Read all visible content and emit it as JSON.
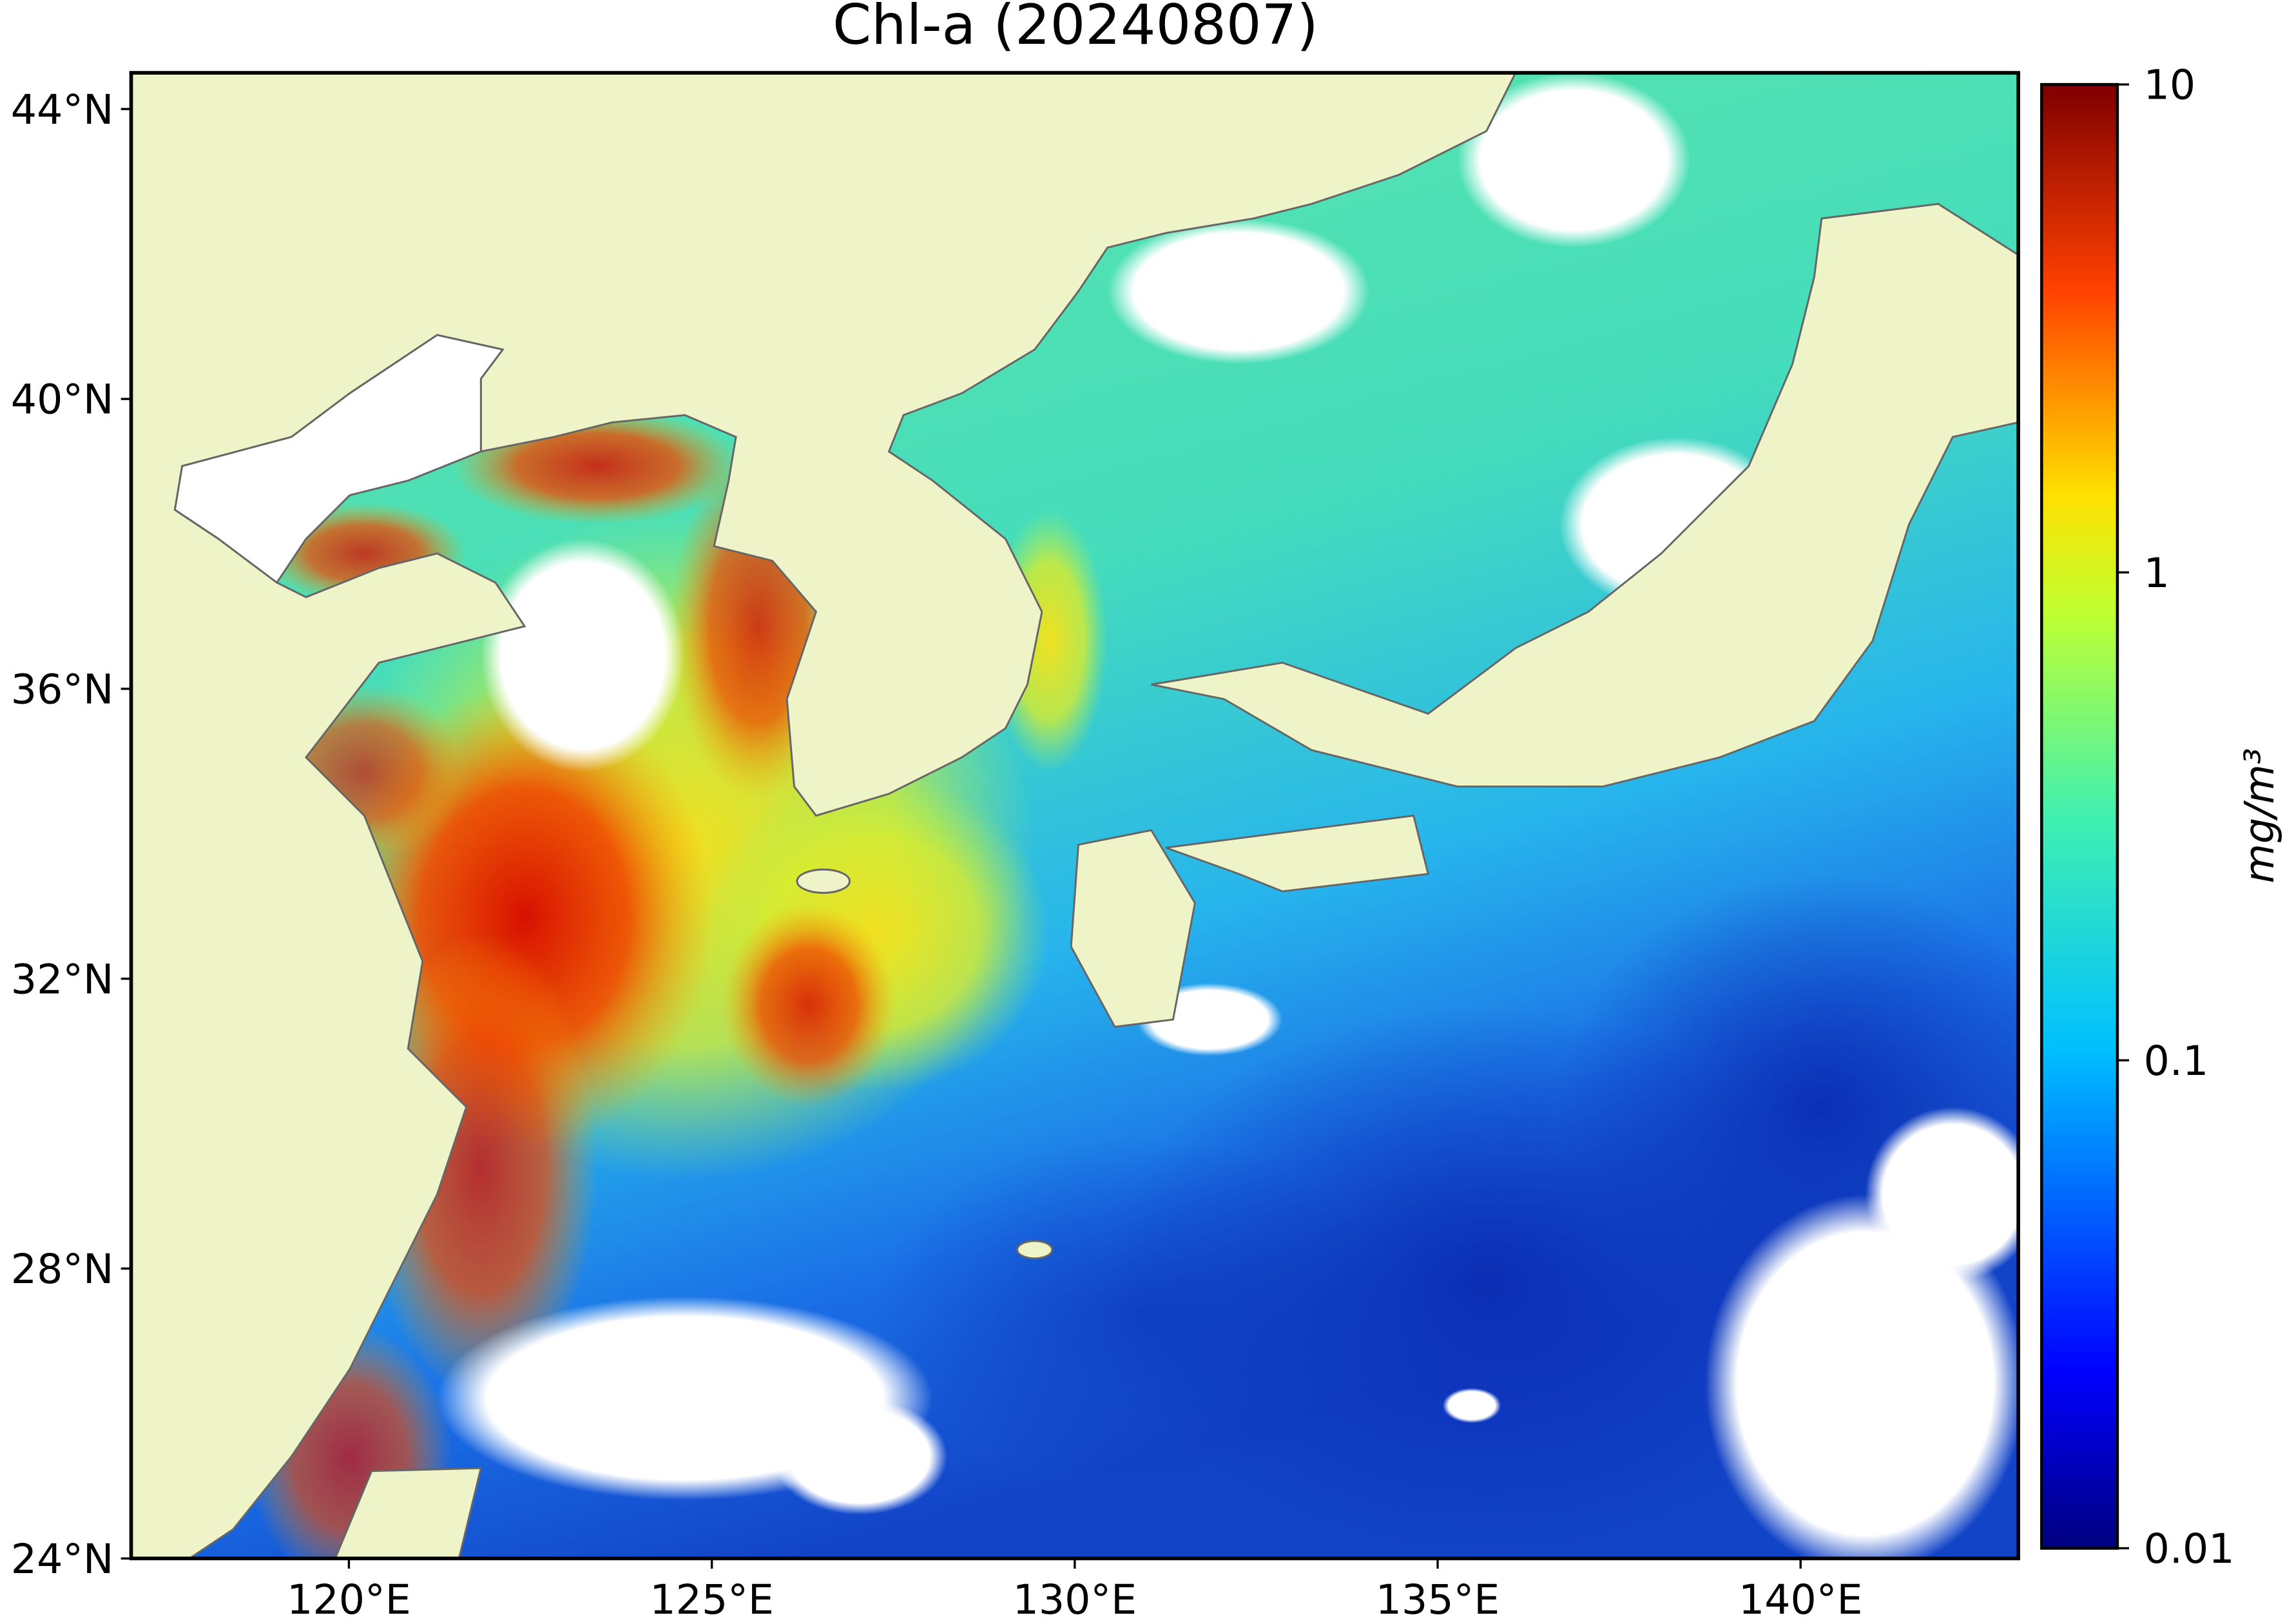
{
  "map": {
    "title": "Chl-a (20240807)",
    "xlim": [
      117,
      143
    ],
    "ylim": [
      24,
      44.5
    ],
    "xticks": [
      {
        "value": 120,
        "label": "120°E"
      },
      {
        "value": 125,
        "label": "125°E"
      },
      {
        "value": 130,
        "label": "130°E"
      },
      {
        "value": 135,
        "label": "135°E"
      },
      {
        "value": 140,
        "label": "140°E"
      }
    ],
    "yticks": [
      {
        "value": 24,
        "label": "24°N"
      },
      {
        "value": 28,
        "label": "28°N"
      },
      {
        "value": 32,
        "label": "32°N"
      },
      {
        "value": 36,
        "label": "36°N"
      },
      {
        "value": 40,
        "label": "40°N"
      },
      {
        "value": 44,
        "label": "44°N"
      }
    ],
    "colorbar": {
      "label": "mg/m³",
      "scale": "log",
      "lim": [
        0.01,
        10
      ],
      "ticks": [
        10,
        1,
        0.1,
        0.01
      ]
    }
  }
}
